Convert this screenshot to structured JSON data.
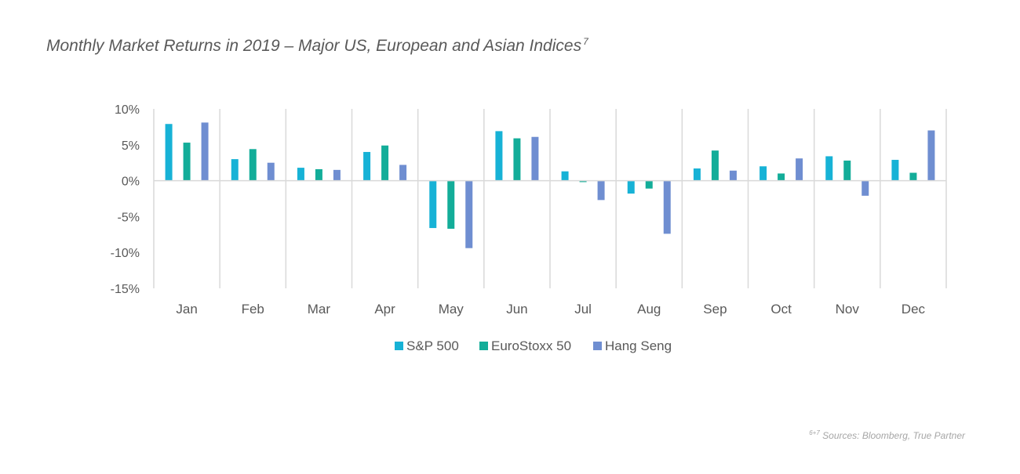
{
  "title": {
    "text": "Monthly Market Returns in 2019 – Major US, European and Asian Indices",
    "footnote_mark": "7"
  },
  "source": {
    "mark": "6+7",
    "text": "Sources: Bloomberg, True Partner"
  },
  "chart_data": {
    "type": "bar",
    "categories": [
      "Jan",
      "Feb",
      "Mar",
      "Apr",
      "May",
      "Jun",
      "Jul",
      "Aug",
      "Sep",
      "Oct",
      "Nov",
      "Dec"
    ],
    "series": [
      {
        "name": "S&P 500",
        "color": "#17b2d6",
        "values": [
          7.9,
          3.0,
          1.8,
          4.0,
          -6.6,
          6.9,
          1.3,
          -1.8,
          1.7,
          2.0,
          3.4,
          2.9
        ]
      },
      {
        "name": "EuroStoxx 50",
        "color": "#13ad99",
        "values": [
          5.3,
          4.4,
          1.6,
          4.9,
          -6.7,
          5.9,
          -0.2,
          -1.1,
          4.2,
          1.0,
          2.8,
          1.1
        ]
      },
      {
        "name": "Hang Seng",
        "color": "#6f8ed1",
        "values": [
          8.1,
          2.5,
          1.5,
          2.2,
          -9.4,
          6.1,
          -2.7,
          -7.4,
          1.4,
          3.1,
          -2.1,
          7.0
        ]
      }
    ],
    "ylim": [
      -15,
      10
    ],
    "yticks": [
      10,
      5,
      0,
      -5,
      -10,
      -15
    ],
    "ytick_labels": [
      "10%",
      "5%",
      "0%",
      "-5%",
      "-10%",
      "-15%"
    ],
    "xlabel": "",
    "ylabel": "",
    "grid": "vertical category separators",
    "legend_position": "bottom"
  }
}
